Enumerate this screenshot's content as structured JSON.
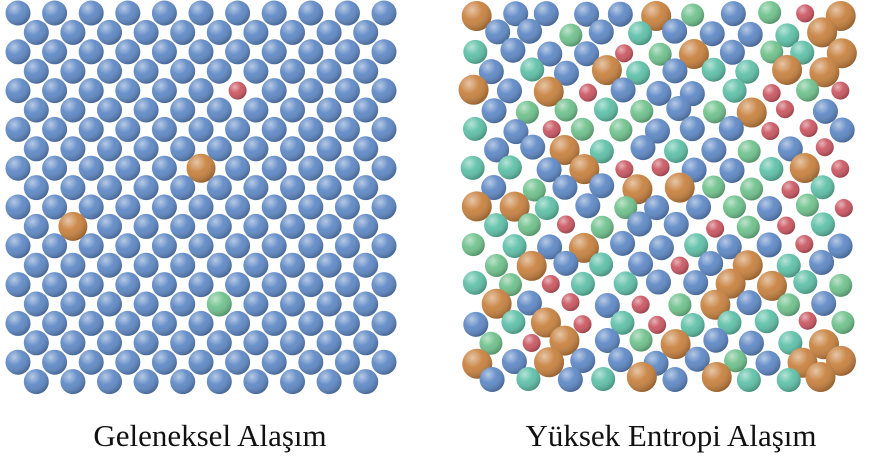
{
  "panels": {
    "conventional": {
      "label": "Geleneksel Alaşım",
      "base_element_color": "#5b86c4",
      "solute_atoms": [
        {
          "row": 5,
          "col": 2,
          "color": "#5bbfa6",
          "kind": "medium"
        },
        {
          "row": 4,
          "col": 12,
          "color": "#c9535e",
          "kind": "small"
        },
        {
          "row": 8,
          "col": 10,
          "color": "#c77f3b",
          "kind": "large"
        },
        {
          "row": 11,
          "col": 3,
          "color": "#c77f3b",
          "kind": "large"
        },
        {
          "row": 11,
          "col": 8,
          "color": "#6cc08a",
          "kind": "medium"
        },
        {
          "row": 13,
          "col": 14,
          "color": "#5bbfa6",
          "kind": "medium"
        },
        {
          "row": 14,
          "col": 5,
          "color": "#c9535e",
          "kind": "small"
        },
        {
          "row": 15,
          "col": 11,
          "color": "#6cc08a",
          "kind": "medium"
        }
      ]
    },
    "high_entropy": {
      "label": "Yüksek Entropi Alaşım",
      "element_colors": [
        "#5b86c4",
        "#c77f3b",
        "#5bbfa6",
        "#6cc08a",
        "#c9535e"
      ]
    }
  }
}
